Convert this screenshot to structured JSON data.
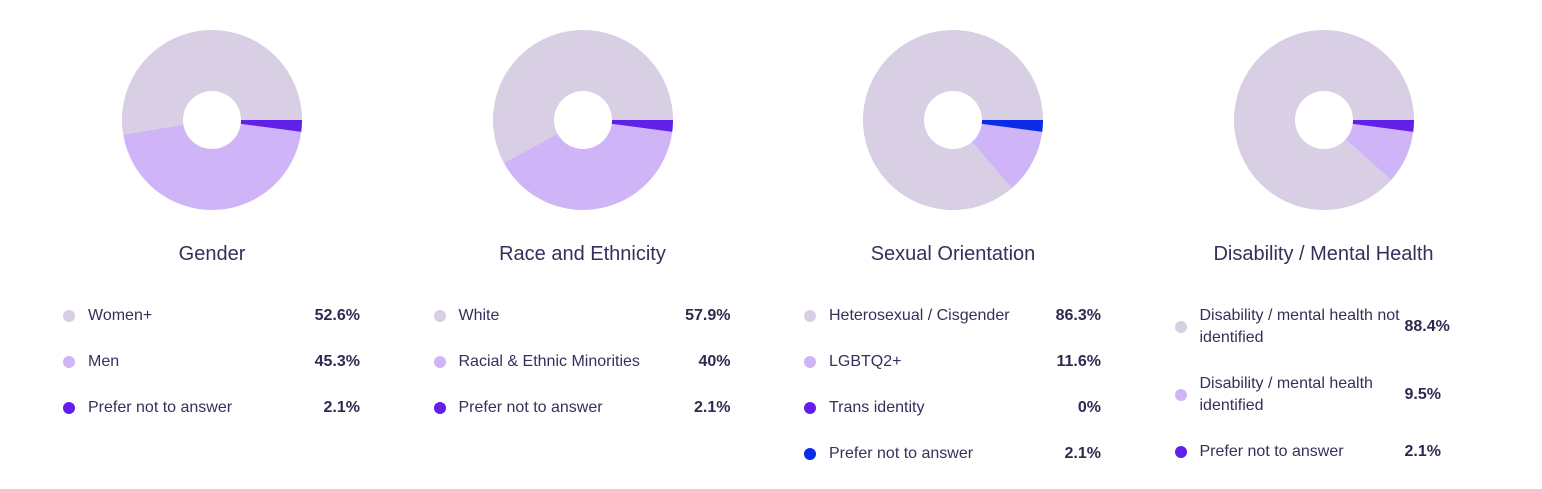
{
  "colors": {
    "light": "#d8cfe4",
    "mid": "#cfb5f7",
    "dark": "#6020e8",
    "blue": "#0a2be8"
  },
  "chart_data": [
    {
      "type": "pie",
      "donut": true,
      "title": "Gender",
      "slices": [
        {
          "label": "Women+",
          "value": 52.6,
          "display": "52.6%",
          "color": "#d8cfe4"
        },
        {
          "label": "Men",
          "value": 45.3,
          "display": "45.3%",
          "color": "#cfb5f7"
        },
        {
          "label": "Prefer not to answer",
          "value": 2.1,
          "display": "2.1%",
          "color": "#6020e8"
        }
      ]
    },
    {
      "type": "pie",
      "donut": true,
      "title": "Race and Ethnicity",
      "slices": [
        {
          "label": "White",
          "value": 57.9,
          "display": "57.9%",
          "color": "#d8cfe4"
        },
        {
          "label": "Racial & Ethnic Minorities",
          "value": 40,
          "display": "40%",
          "color": "#cfb5f7"
        },
        {
          "label": "Prefer not to answer",
          "value": 2.1,
          "display": "2.1%",
          "color": "#6020e8"
        }
      ]
    },
    {
      "type": "pie",
      "donut": true,
      "title": "Sexual Orientation",
      "slices": [
        {
          "label": "Heterosexual / Cisgender",
          "value": 86.3,
          "display": "86.3%",
          "color": "#d8cfe4"
        },
        {
          "label": "LGBTQ2+",
          "value": 11.6,
          "display": "11.6%",
          "color": "#cfb5f7"
        },
        {
          "label": "Trans identity",
          "value": 0,
          "display": "0%",
          "color": "#6020e8"
        },
        {
          "label": "Prefer not to answer",
          "value": 2.1,
          "display": "2.1%",
          "color": "#0a2be8"
        }
      ]
    },
    {
      "type": "pie",
      "donut": true,
      "title": "Disability / Mental Health",
      "slices": [
        {
          "label": "Disability / mental health not identified",
          "value": 88.4,
          "display": "88.4%",
          "color": "#d8cfe4"
        },
        {
          "label": "Disability / mental health identified",
          "value": 9.5,
          "display": "9.5%",
          "color": "#cfb5f7"
        },
        {
          "label": "Prefer not to answer",
          "value": 2.1,
          "display": "2.1%",
          "color": "#6020e8"
        }
      ]
    }
  ]
}
